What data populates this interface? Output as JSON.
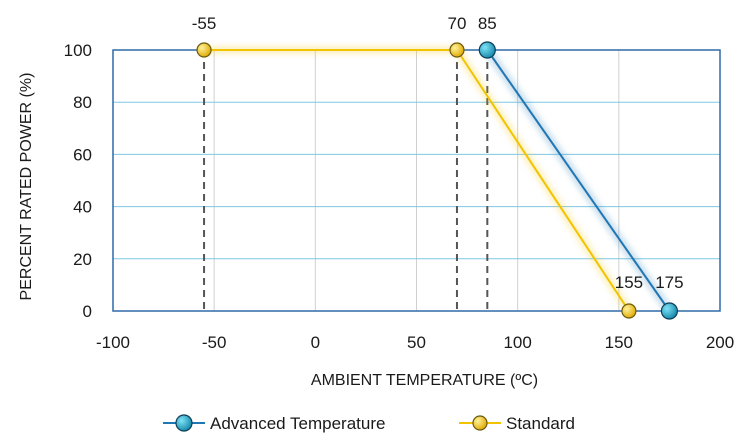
{
  "chart_data": {
    "type": "line",
    "xlabel": "AMBIENT TEMPERATURE (ºC)",
    "ylabel": "PERCENT RATED POWER (%)",
    "xlim": [
      -100,
      200
    ],
    "ylim": [
      0,
      100
    ],
    "x_ticks": [
      -100,
      -50,
      0,
      50,
      100,
      150,
      200
    ],
    "y_ticks": [
      0,
      20,
      40,
      60,
      80,
      100
    ],
    "grid": {
      "horizontal": true,
      "vertical": true
    },
    "legend_position": "bottom",
    "series": [
      {
        "name": "Advanced Temperature",
        "color": "#1f77b4",
        "marker_color": "#1a9ec9",
        "points": [
          {
            "x": 85,
            "y": 100
          },
          {
            "x": 175,
            "y": 0
          }
        ]
      },
      {
        "name": "Standard",
        "color": "#f2c300",
        "marker_color": "#f2c300",
        "points": [
          {
            "x": -55,
            "y": 100
          },
          {
            "x": 70,
            "y": 100
          },
          {
            "x": 155,
            "y": 0
          }
        ]
      }
    ],
    "top_annotations": [
      {
        "text": "-55",
        "x": -55
      },
      {
        "text": "70",
        "x": 70
      },
      {
        "text": "85",
        "x": 85
      }
    ],
    "point_annotations": [
      {
        "text": "155",
        "x": 155
      },
      {
        "text": "175",
        "x": 175
      }
    ],
    "dashed_verticals": [
      -55,
      70,
      85
    ]
  }
}
